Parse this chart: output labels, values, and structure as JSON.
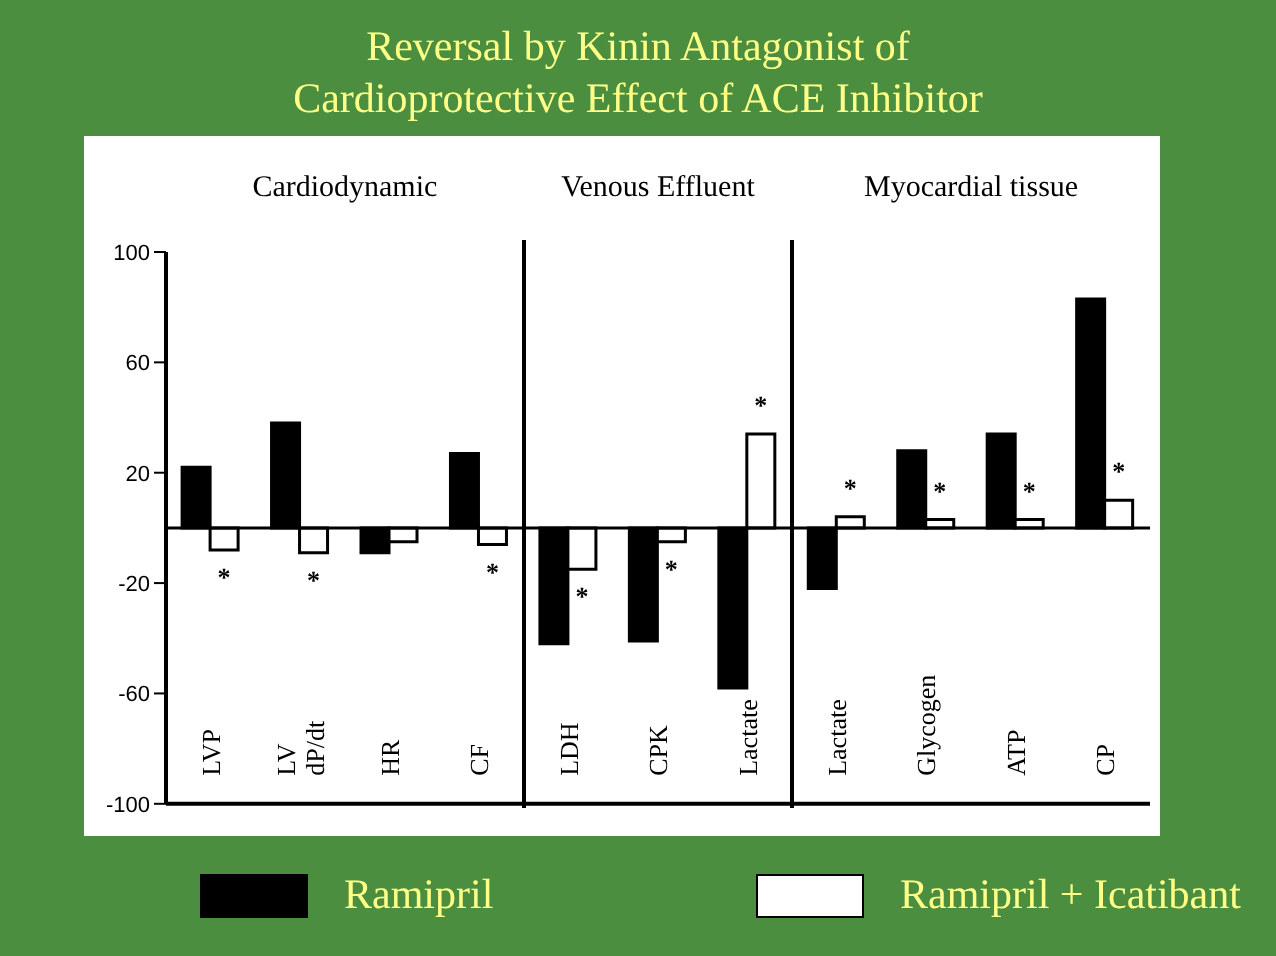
{
  "chart_data": {
    "type": "bar",
    "title": "Reversal by Kinin Antagonist of\nCardioprotective Effect of ACE Inhibitor",
    "annotations": [
      "Cardiodynamic",
      "Venous Effluent",
      "Myocardial tissue"
    ],
    "categories": [
      "LVP",
      "LV dP/dt",
      "HR",
      "CF",
      "LDH",
      "CPK",
      "Lactate",
      "Lactate",
      "Glycogen",
      "ATP",
      "CP"
    ],
    "series": [
      {
        "name": "Ramipril",
        "color": "#000000",
        "values": [
          22,
          38,
          -9,
          27,
          -42,
          -41,
          -58,
          -22,
          28,
          34,
          83
        ]
      },
      {
        "name": "Ramipril + Icatibant",
        "color": "#ffffff",
        "values": [
          -8,
          -9,
          -5,
          -6,
          -15,
          -5,
          34,
          4,
          3,
          3,
          10
        ],
        "value_labels": [
          "*",
          "*",
          null,
          "*",
          "*",
          "*",
          "*",
          "*",
          "*",
          "*",
          "*"
        ]
      }
    ],
    "ylim": [
      -100,
      100
    ],
    "yticks": [
      -100,
      -60,
      -20,
      20,
      60,
      100
    ],
    "ref_lines": [
      {
        "axis": "y",
        "value": 0
      }
    ],
    "grid": false,
    "legend": "bottom"
  }
}
